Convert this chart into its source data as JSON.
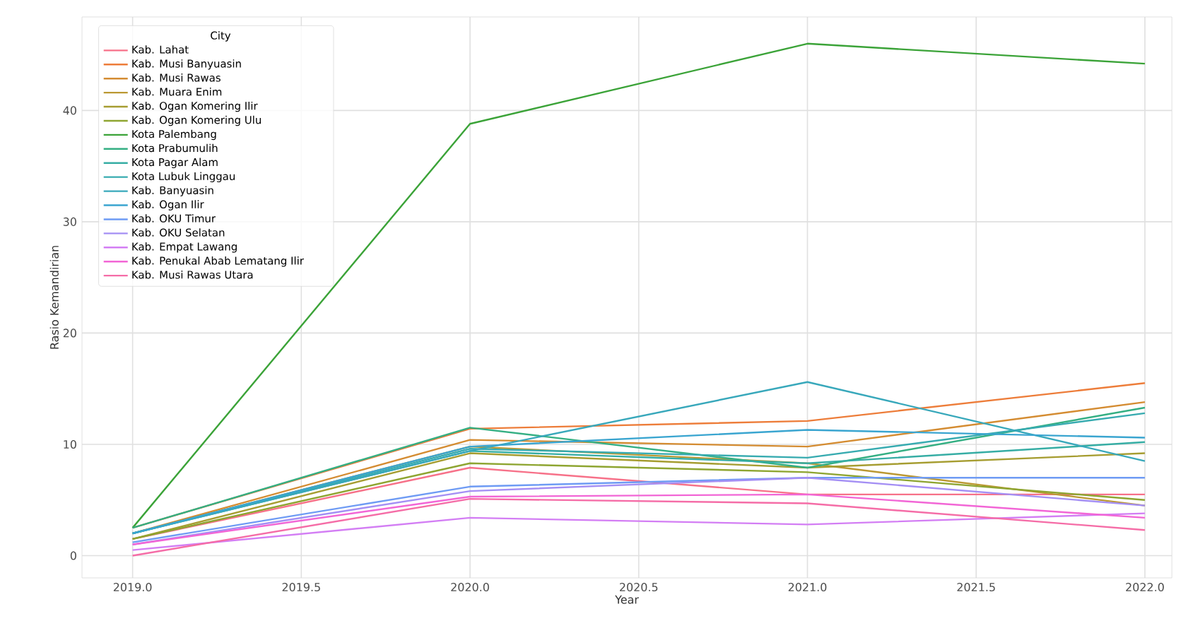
{
  "chart_data": {
    "type": "line",
    "xlabel": "Year",
    "ylabel": "Rasio Kemandirian",
    "legend_title": "City",
    "x": [
      2019,
      2020,
      2021,
      2022
    ],
    "series": [
      {
        "name": "Kab. Lahat",
        "color": "#f77189",
        "values": [
          1.5,
          7.9,
          5.5,
          5.5
        ]
      },
      {
        "name": "Kab. Musi Banyuasin",
        "color": "#ed7d3a",
        "values": [
          2.5,
          11.4,
          12.1,
          15.5
        ]
      },
      {
        "name": "Kab. Musi Rawas",
        "color": "#d48c32",
        "values": [
          2.0,
          10.4,
          9.8,
          13.8
        ]
      },
      {
        "name": "Kab. Muara Enim",
        "color": "#bb9832",
        "values": [
          2.0,
          9.8,
          8.3,
          4.5
        ]
      },
      {
        "name": "Kab. Ogan Komering Ilir",
        "color": "#a69d31",
        "values": [
          1.5,
          9.2,
          7.9,
          9.2
        ]
      },
      {
        "name": "Kab. Ogan Komering Ulu",
        "color": "#8ea531",
        "values": [
          1.5,
          8.3,
          7.5,
          5.0
        ]
      },
      {
        "name": "Kota Palembang",
        "color": "#3ba338",
        "values": [
          2.5,
          38.8,
          46.0,
          44.2
        ]
      },
      {
        "name": "Kota Prabumulih",
        "color": "#34af83",
        "values": [
          2.5,
          11.5,
          7.9,
          13.3
        ]
      },
      {
        "name": "Kota Pagar Alam",
        "color": "#36ada4",
        "values": [
          2.0,
          9.4,
          8.3,
          10.2
        ]
      },
      {
        "name": "Kota Lubuk Linggau",
        "color": "#37abb0",
        "values": [
          2.0,
          9.6,
          8.8,
          12.8
        ]
      },
      {
        "name": "Kab. Banyuasin",
        "color": "#38a8bb",
        "values": [
          2.0,
          9.4,
          15.6,
          8.5
        ]
      },
      {
        "name": "Kab. Ogan Ilir",
        "color": "#3aa5d0",
        "values": [
          2.0,
          9.8,
          11.3,
          10.6
        ]
      },
      {
        "name": "Kab. OKU Timur",
        "color": "#6e9bf4",
        "values": [
          1.2,
          6.2,
          7.0,
          7.0
        ]
      },
      {
        "name": "Kab. OKU Selatan",
        "color": "#a48ff4",
        "values": [
          1.0,
          5.8,
          7.0,
          4.5
        ]
      },
      {
        "name": "Kab. Empat Lawang",
        "color": "#d37ef4",
        "values": [
          0.5,
          3.4,
          2.8,
          3.8
        ]
      },
      {
        "name": "Kab. Penukal Abab Lematang Ilir",
        "color": "#f266d6",
        "values": [
          1.0,
          5.3,
          5.5,
          3.4
        ]
      },
      {
        "name": "Kab. Musi Rawas Utara",
        "color": "#f56da7",
        "values": [
          0.0,
          5.1,
          4.7,
          2.3
        ]
      }
    ],
    "xlim": [
      2018.85,
      2022.08
    ],
    "ylim": [
      -2,
      48.4
    ],
    "xticks": [
      {
        "value": 2019,
        "label": "2019.0"
      },
      2019.5,
      {
        "value": 2020,
        "label": "2020.0"
      },
      2020.5,
      {
        "value": 2021,
        "label": "2021.0"
      },
      2021.5,
      {
        "value": 2022,
        "label": "2022.0"
      }
    ],
    "yticks": [
      0,
      10,
      20,
      30,
      40
    ],
    "grid": true,
    "legend": "top left",
    "marker": "none",
    "line_style": "solid"
  }
}
